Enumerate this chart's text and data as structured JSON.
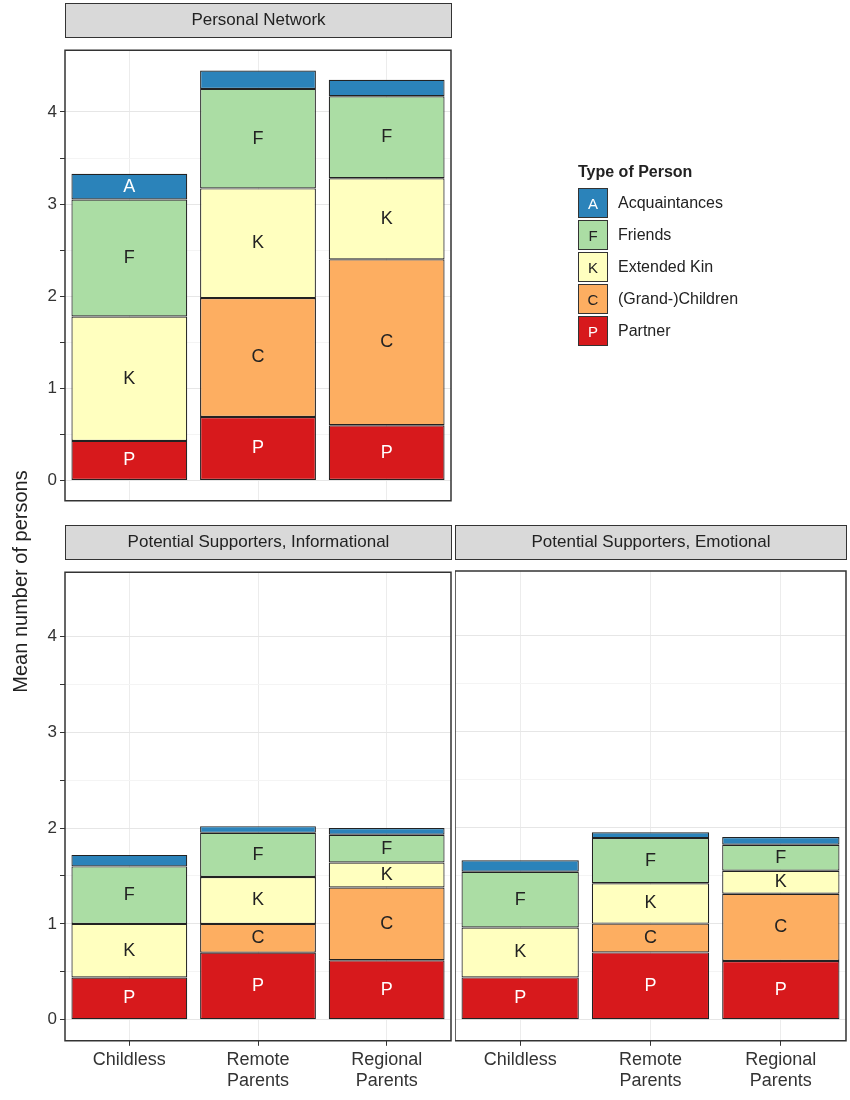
{
  "chart_data": [
    {
      "type": "bar",
      "title": "Personal Network",
      "ylabel": "Mean number of persons",
      "legend_title": "Type of Person",
      "legend": "right",
      "stacked": true,
      "grid": true,
      "tick_labels": "y",
      "categories": [
        null,
        null,
        null
      ],
      "ylim": [
        -0.22,
        4.67
      ],
      "yticks": [
        0,
        1,
        2,
        3,
        4
      ],
      "series": [
        {
          "name": "Partner",
          "color": "#d7191c",
          "values": [
            0.43,
            0.69,
            0.6
          ],
          "value_labels": [
            "P",
            "P",
            "P"
          ]
        },
        {
          "name": "(Grand-)Children",
          "color": "#fdae61",
          "values": [
            0,
            1.29,
            1.8
          ],
          "value_labels": [
            null,
            "C",
            "C"
          ]
        },
        {
          "name": "Extended Kin",
          "color": "#ffffbf",
          "values": [
            1.35,
            1.19,
            0.88
          ],
          "value_labels": [
            "K",
            "K",
            "K"
          ]
        },
        {
          "name": "Friends",
          "color": "#abdda4",
          "values": [
            1.27,
            1.08,
            0.89
          ],
          "value_labels": [
            "F",
            "F",
            "F"
          ]
        },
        {
          "name": "Acquaintances",
          "color": "#2b83ba",
          "values": [
            0.28,
            0.2,
            0.18
          ],
          "value_labels": [
            "A",
            null,
            null
          ]
        }
      ]
    },
    {
      "type": "bar",
      "title": "Potential Supporters, Informational",
      "stacked": true,
      "grid": true,
      "categories": [
        "Childless",
        "Remote Parents",
        "Regional Parents"
      ],
      "ylim": [
        -0.22,
        4.67
      ],
      "yticks": [
        0,
        1,
        2,
        3,
        4
      ],
      "series": [
        {
          "color": "#d7191c",
          "values": [
            0.44,
            0.7,
            0.62
          ],
          "value_labels": [
            "P",
            "P",
            "P"
          ]
        },
        {
          "color": "#fdae61",
          "values": [
            0,
            0.3,
            0.76
          ],
          "value_labels": [
            null,
            "C",
            "C"
          ]
        },
        {
          "color": "#ffffbf",
          "values": [
            0.56,
            0.49,
            0.26
          ],
          "value_labels": [
            "K",
            "K",
            "K"
          ]
        },
        {
          "color": "#abdda4",
          "values": [
            0.6,
            0.46,
            0.29
          ],
          "value_labels": [
            "F",
            "F",
            "F"
          ]
        },
        {
          "color": "#2b83ba",
          "values": [
            0.12,
            0.07,
            0.07
          ],
          "value_labels": [
            null,
            null,
            null
          ]
        }
      ]
    },
    {
      "type": "bar",
      "title": "Potential Supporters, Emotional",
      "stacked": true,
      "grid": true,
      "tick_labels": "x",
      "categories": [
        "Childless",
        "Remote Parents",
        "Regional Parents"
      ],
      "ylim": [
        -0.22,
        4.67
      ],
      "yticks": [
        0,
        1,
        2,
        3,
        4
      ],
      "series": [
        {
          "color": "#d7191c",
          "values": [
            0.44,
            0.7,
            0.61
          ],
          "value_labels": [
            "P",
            "P",
            "P"
          ]
        },
        {
          "color": "#fdae61",
          "values": [
            0,
            0.3,
            0.7
          ],
          "value_labels": [
            null,
            "C",
            "C"
          ]
        },
        {
          "color": "#ffffbf",
          "values": [
            0.52,
            0.42,
            0.24
          ],
          "value_labels": [
            "K",
            "K",
            "K"
          ]
        },
        {
          "color": "#abdda4",
          "values": [
            0.58,
            0.47,
            0.27
          ],
          "value_labels": [
            "F",
            "F",
            "F"
          ]
        },
        {
          "color": "#2b83ba",
          "values": [
            0.12,
            0.06,
            0.08
          ],
          "value_labels": [
            null,
            null,
            null
          ]
        }
      ]
    }
  ]
}
